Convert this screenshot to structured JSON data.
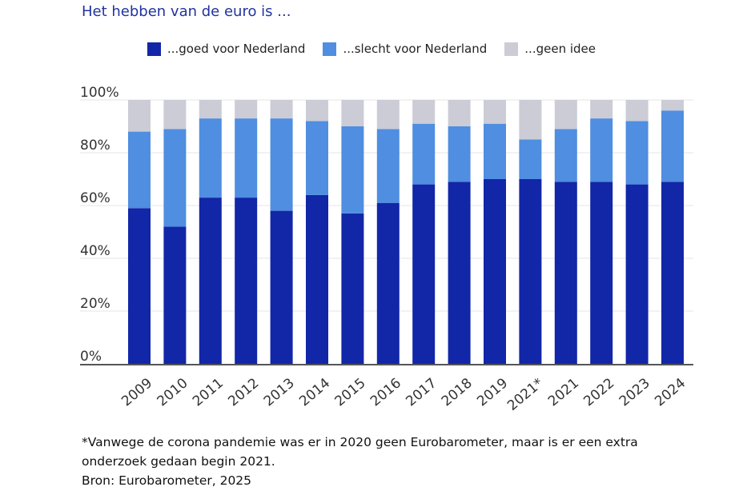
{
  "chart_data": {
    "type": "bar",
    "stacked": true,
    "title": "Het hebben van de euro is ...",
    "categories": [
      "2009",
      "2010",
      "2011",
      "2012",
      "2013",
      "2014",
      "2015",
      "2016",
      "2017",
      "2018",
      "2019",
      "2021*",
      "2021",
      "2022",
      "2023",
      "2024"
    ],
    "series": [
      {
        "name": "...goed voor Nederland",
        "color": "#1226a8",
        "values": [
          59,
          52,
          63,
          63,
          58,
          64,
          57,
          61,
          68,
          69,
          70,
          70,
          69,
          69,
          68,
          69
        ]
      },
      {
        "name": "...slecht voor Nederland",
        "color": "#4f8ee0",
        "values": [
          29,
          37,
          30,
          30,
          35,
          28,
          33,
          28,
          23,
          21,
          21,
          15,
          20,
          24,
          24,
          27
        ]
      },
      {
        "name": "...geen idee",
        "color": "#cbccd6",
        "values": [
          12,
          11,
          7,
          7,
          7,
          8,
          10,
          11,
          9,
          10,
          9,
          15,
          11,
          7,
          8,
          4
        ]
      }
    ],
    "ylim": [
      0,
      100
    ],
    "yticks": [
      "0%",
      "20%",
      "40%",
      "60%",
      "80%",
      "100%"
    ],
    "grid": true,
    "legend": "top"
  },
  "note": {
    "line1": "*Vanwege de corona pandemie was er in 2020 geen Eurobarometer, maar is er een extra",
    "line2": "onderzoek gedaan begin 2021.",
    "source": "Bron: Eurobarometer, 2025"
  }
}
